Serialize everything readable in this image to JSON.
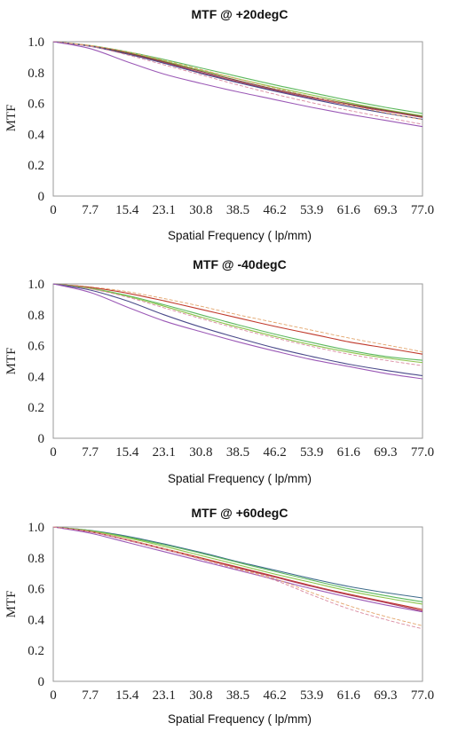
{
  "chart_data": [
    {
      "type": "line",
      "title": "MTF @ +20degC",
      "xlabel": "Spatial Frequency ( lp/mm)",
      "ylabel": "MTF",
      "x_ticks": [
        "0",
        "7.7",
        "15.4",
        "23.1",
        "30.8",
        "38.5",
        "46.2",
        "53.9",
        "61.6",
        "69.3",
        "77.0"
      ],
      "y_ticks": [
        "0",
        "0.2",
        "0.4",
        "0.6",
        "0.8",
        "1.0"
      ],
      "xlim": [
        0,
        77
      ],
      "ylim": [
        0,
        1
      ],
      "grid": false,
      "x": [
        0,
        7.7,
        15.4,
        23.1,
        30.8,
        38.5,
        46.2,
        53.9,
        61.6,
        69.3,
        77.0
      ],
      "series": [
        {
          "color": "#5cb85c",
          "dash": "solid",
          "values": [
            1.0,
            0.975,
            0.935,
            0.885,
            0.83,
            0.775,
            0.72,
            0.67,
            0.62,
            0.575,
            0.535
          ]
        },
        {
          "color": "#8bc34a",
          "dash": "solid",
          "values": [
            1.0,
            0.974,
            0.93,
            0.875,
            0.815,
            0.76,
            0.705,
            0.655,
            0.605,
            0.56,
            0.52
          ]
        },
        {
          "color": "#b03a5b",
          "dash": "solid",
          "values": [
            1.0,
            0.972,
            0.925,
            0.865,
            0.8,
            0.74,
            0.685,
            0.635,
            0.59,
            0.55,
            0.51
          ]
        },
        {
          "color": "#7a4a3a",
          "dash": "solid",
          "values": [
            1.0,
            0.973,
            0.928,
            0.87,
            0.808,
            0.748,
            0.692,
            0.642,
            0.597,
            0.555,
            0.515
          ]
        },
        {
          "color": "#4a4a8a",
          "dash": "solid",
          "values": [
            1.0,
            0.97,
            0.92,
            0.86,
            0.795,
            0.735,
            0.68,
            0.628,
            0.58,
            0.537,
            0.497
          ]
        },
        {
          "color": "#d98aa0",
          "dash": "dashed",
          "values": [
            1.0,
            0.97,
            0.915,
            0.85,
            0.785,
            0.72,
            0.66,
            0.605,
            0.555,
            0.51,
            0.465
          ]
        },
        {
          "color": "#e3a56b",
          "dash": "dashed",
          "values": [
            1.0,
            0.975,
            0.935,
            0.88,
            0.82,
            0.76,
            0.7,
            0.645,
            0.59,
            0.54,
            0.495
          ]
        },
        {
          "color": "#9b59b6",
          "dash": "solid",
          "values": [
            1.0,
            0.955,
            0.87,
            0.79,
            0.73,
            0.675,
            0.625,
            0.575,
            0.53,
            0.49,
            0.45
          ]
        }
      ]
    },
    {
      "type": "line",
      "title": "MTF @ -40degC",
      "xlabel": "Spatial Frequency ( lp/mm)",
      "ylabel": "MTF",
      "x_ticks": [
        "0",
        "7.7",
        "15.4",
        "23.1",
        "30.8",
        "38.5",
        "46.2",
        "53.9",
        "61.6",
        "69.3",
        "77.0"
      ],
      "y_ticks": [
        "0",
        "0.2",
        "0.4",
        "0.6",
        "0.8",
        "1.0"
      ],
      "xlim": [
        0,
        77
      ],
      "ylim": [
        0,
        1
      ],
      "grid": false,
      "x": [
        0,
        7.7,
        15.4,
        23.1,
        30.8,
        38.5,
        46.2,
        53.9,
        61.6,
        69.3,
        77.0
      ],
      "series": [
        {
          "color": "#e3a56b",
          "dash": "dashed",
          "values": [
            1.0,
            0.98,
            0.95,
            0.905,
            0.855,
            0.8,
            0.75,
            0.7,
            0.65,
            0.605,
            0.56
          ]
        },
        {
          "color": "#c0392b",
          "dash": "solid",
          "values": [
            1.0,
            0.978,
            0.94,
            0.89,
            0.835,
            0.78,
            0.725,
            0.675,
            0.625,
            0.585,
            0.545
          ]
        },
        {
          "color": "#5cb85c",
          "dash": "solid",
          "values": [
            1.0,
            0.972,
            0.925,
            0.865,
            0.8,
            0.735,
            0.675,
            0.62,
            0.57,
            0.53,
            0.505
          ]
        },
        {
          "color": "#8bc34a",
          "dash": "solid",
          "values": [
            1.0,
            0.97,
            0.92,
            0.855,
            0.785,
            0.72,
            0.66,
            0.605,
            0.558,
            0.52,
            0.49
          ]
        },
        {
          "color": "#d98aa0",
          "dash": "dashed",
          "values": [
            1.0,
            0.968,
            0.915,
            0.845,
            0.775,
            0.71,
            0.65,
            0.595,
            0.545,
            0.505,
            0.47
          ]
        },
        {
          "color": "#4a4a8a",
          "dash": "solid",
          "values": [
            1.0,
            0.96,
            0.89,
            0.8,
            0.72,
            0.65,
            0.585,
            0.53,
            0.48,
            0.44,
            0.405
          ]
        },
        {
          "color": "#9b59b6",
          "dash": "solid",
          "values": [
            1.0,
            0.945,
            0.85,
            0.76,
            0.69,
            0.625,
            0.565,
            0.51,
            0.465,
            0.42,
            0.385
          ]
        }
      ]
    },
    {
      "type": "line",
      "title": "MTF @ +60degC",
      "xlabel": "Spatial Frequency ( lp/mm)",
      "ylabel": "MTF",
      "x_ticks": [
        "0",
        "7.7",
        "15.4",
        "23.1",
        "30.8",
        "38.5",
        "46.2",
        "53.9",
        "61.6",
        "69.3",
        "77.0"
      ],
      "y_ticks": [
        "0",
        "0.2",
        "0.4",
        "0.6",
        "0.8",
        "1.0"
      ],
      "xlim": [
        0,
        77
      ],
      "ylim": [
        0,
        1
      ],
      "grid": false,
      "x": [
        0,
        7.7,
        15.4,
        23.1,
        30.8,
        38.5,
        46.2,
        53.9,
        61.6,
        69.3,
        77.0
      ],
      "series": [
        {
          "color": "#3d6b8a",
          "dash": "solid",
          "values": [
            1.0,
            0.978,
            0.94,
            0.89,
            0.835,
            0.775,
            0.72,
            0.665,
            0.615,
            0.575,
            0.54
          ]
        },
        {
          "color": "#5cb85c",
          "dash": "solid",
          "values": [
            1.0,
            0.977,
            0.935,
            0.885,
            0.83,
            0.77,
            0.712,
            0.655,
            0.6,
            0.555,
            0.515
          ]
        },
        {
          "color": "#8bc34a",
          "dash": "solid",
          "values": [
            1.0,
            0.975,
            0.93,
            0.875,
            0.815,
            0.755,
            0.695,
            0.64,
            0.585,
            0.54,
            0.5
          ]
        },
        {
          "color": "#c0392b",
          "dash": "solid",
          "values": [
            1.0,
            0.97,
            0.918,
            0.86,
            0.8,
            0.74,
            0.68,
            0.62,
            0.565,
            0.515,
            0.465
          ]
        },
        {
          "color": "#b03a5b",
          "dash": "solid",
          "values": [
            1.0,
            0.968,
            0.915,
            0.855,
            0.795,
            0.735,
            0.675,
            0.615,
            0.56,
            0.51,
            0.455
          ]
        },
        {
          "color": "#9b59b6",
          "dash": "solid",
          "values": [
            1.0,
            0.96,
            0.9,
            0.84,
            0.78,
            0.72,
            0.66,
            0.6,
            0.545,
            0.495,
            0.45
          ]
        },
        {
          "color": "#e3a56b",
          "dash": "dashed",
          "values": [
            1.0,
            0.97,
            0.92,
            0.86,
            0.795,
            0.73,
            0.665,
            0.575,
            0.49,
            0.42,
            0.36
          ]
        },
        {
          "color": "#d98aa0",
          "dash": "dashed",
          "values": [
            1.0,
            0.968,
            0.915,
            0.855,
            0.79,
            0.725,
            0.655,
            0.56,
            0.47,
            0.4,
            0.34
          ]
        }
      ]
    }
  ]
}
